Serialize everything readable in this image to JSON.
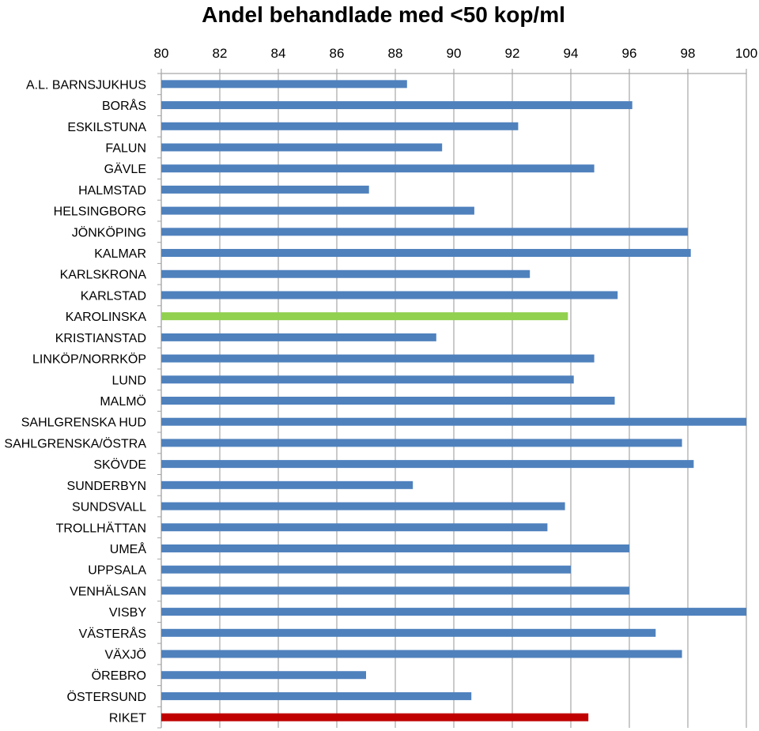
{
  "chart_data": {
    "type": "bar",
    "orientation": "horizontal",
    "title": "Andel behandlade med <50 kop/ml",
    "xlabel": "",
    "ylabel": "",
    "xlim": [
      80,
      100
    ],
    "xticks": [
      "80",
      "82",
      "84",
      "86",
      "88",
      "90",
      "92",
      "94",
      "96",
      "98",
      "100"
    ],
    "x_axis_position": "top",
    "grid": true,
    "legend": "none",
    "default_color": "#4f81bd",
    "categories": [
      "A.L. BARNSJUKHUS",
      "BORÅS",
      "ESKILSTUNA",
      "FALUN",
      "GÄVLE",
      "HALMSTAD",
      "HELSINGBORG",
      "JÖNKÖPING",
      "KALMAR",
      "KARLSKRONA",
      "KARLSTAD",
      "KAROLINSKA",
      "KRISTIANSTAD",
      "LINKÖP/NORRKÖP",
      "LUND",
      "MALMÖ",
      "SAHLGRENSKA HUD",
      "SAHLGRENSKA/ÖSTRA",
      "SKÖVDE",
      "SUNDERBYN",
      "SUNDSVALL",
      "TROLLHÄTTAN",
      "UMEÅ",
      "UPPSALA",
      "VENHÄLSAN",
      "VISBY",
      "VÄSTERÅS",
      "VÄXJÖ",
      "ÖREBRO",
      "ÖSTERSUND",
      "RIKET"
    ],
    "values": [
      88.4,
      96.1,
      92.2,
      89.6,
      94.8,
      87.1,
      90.7,
      98.0,
      98.1,
      92.6,
      95.6,
      93.9,
      89.4,
      94.8,
      94.1,
      95.5,
      100.0,
      97.8,
      98.2,
      88.6,
      93.8,
      93.2,
      96.0,
      94.0,
      96.0,
      100.0,
      96.9,
      97.8,
      87.0,
      90.6,
      94.6
    ],
    "highlights": [
      {
        "category": "KAROLINSKA",
        "color": "#92d050"
      },
      {
        "category": "RIKET",
        "color": "#c00000"
      }
    ]
  }
}
